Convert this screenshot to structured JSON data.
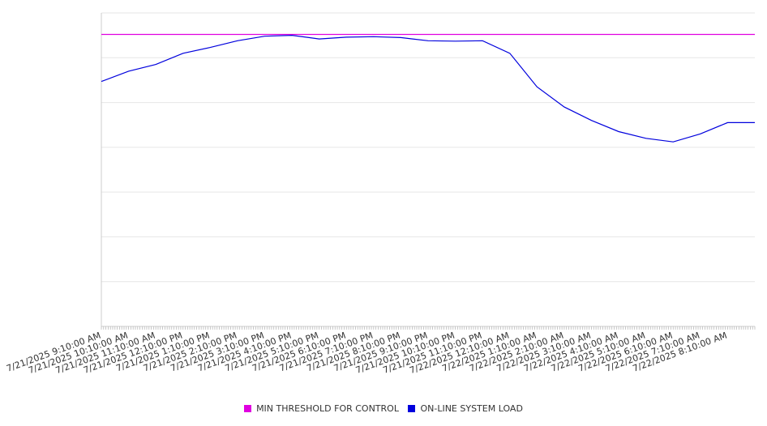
{
  "chart_data": {
    "type": "line",
    "title": "",
    "xlabel": "",
    "ylabel": "",
    "x_ticks": [
      "7/21/2025 9:10:00 AM",
      "7/21/2025 10:10:00 AM",
      "7/21/2025 11:10:00 AM",
      "7/21/2025 12:10:00 PM",
      "7/21/2025 1:10:00 PM",
      "7/21/2025 2:10:00 PM",
      "7/21/2025 3:10:00 PM",
      "7/21/2025 4:10:00 PM",
      "7/21/2025 5:10:00 PM",
      "7/21/2025 6:10:00 PM",
      "7/21/2025 7:10:00 PM",
      "7/21/2025 8:10:00 PM",
      "7/21/2025 9:10:00 PM",
      "7/21/2025 10:10:00 PM",
      "7/21/2025 11:10:00 PM",
      "7/22/2025 12:10:00 AM",
      "7/22/2025 1:10:00 AM",
      "7/22/2025 2:10:00 AM",
      "7/22/2025 3:10:00 AM",
      "7/22/2025 4:10:00 AM",
      "7/22/2025 5:10:00 AM",
      "7/22/2025 6:10:00 AM",
      "7/22/2025 7:10:00 AM",
      "7/22/2025 8:10:00 AM"
    ],
    "y_range": [
      0,
      7
    ],
    "y_grid_count": 7,
    "y_tick_labels_visible": false,
    "grid": true,
    "legend_position": "bottom-center",
    "series": [
      {
        "name": "MIN THRESHOLD FOR CONTROL",
        "color": "#e000e0",
        "values": [
          6.52,
          6.52,
          6.52,
          6.52,
          6.52,
          6.52,
          6.52,
          6.52,
          6.52,
          6.52,
          6.52,
          6.52,
          6.52,
          6.52,
          6.52,
          6.52,
          6.52,
          6.52,
          6.52,
          6.52,
          6.52,
          6.52,
          6.52,
          6.52
        ]
      },
      {
        "name": "ON-LINE SYSTEM LOAD",
        "color": "#0000dd",
        "values": [
          5.47,
          5.7,
          5.85,
          6.1,
          6.23,
          6.38,
          6.48,
          6.5,
          6.42,
          6.46,
          6.47,
          6.45,
          6.38,
          6.37,
          6.38,
          6.1,
          5.35,
          4.9,
          4.6,
          4.35,
          4.2,
          4.12,
          4.3,
          4.55
        ]
      }
    ]
  },
  "legend": {
    "items": [
      {
        "label": "MIN THRESHOLD FOR CONTROL",
        "color": "#e000e0"
      },
      {
        "label": "ON-LINE SYSTEM LOAD",
        "color": "#0000dd"
      }
    ]
  }
}
